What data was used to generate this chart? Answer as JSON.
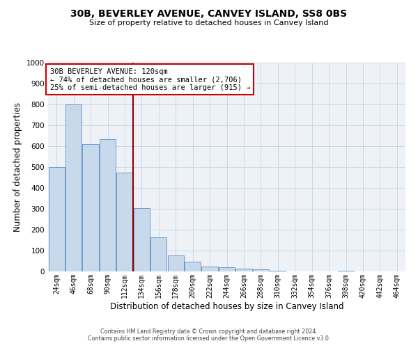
{
  "title": "30B, BEVERLEY AVENUE, CANVEY ISLAND, SS8 0BS",
  "subtitle": "Size of property relative to detached houses in Canvey Island",
  "xlabel": "Distribution of detached houses by size in Canvey Island",
  "ylabel": "Number of detached properties",
  "bar_labels": [
    "24sqm",
    "46sqm",
    "68sqm",
    "90sqm",
    "112sqm",
    "134sqm",
    "156sqm",
    "178sqm",
    "200sqm",
    "222sqm",
    "244sqm",
    "266sqm",
    "288sqm",
    "310sqm",
    "332sqm",
    "354sqm",
    "376sqm",
    "398sqm",
    "420sqm",
    "442sqm",
    "464sqm"
  ],
  "bar_values": [
    500,
    800,
    610,
    635,
    475,
    305,
    162,
    78,
    48,
    25,
    20,
    12,
    10,
    5,
    0,
    0,
    0,
    5,
    0,
    0,
    0
  ],
  "bar_color": "#c9d9ec",
  "bar_edgecolor": "#5b8fc9",
  "vline_x_index": 4.5,
  "vline_color": "#8b0000",
  "annotation_text": "30B BEVERLEY AVENUE: 120sqm\n← 74% of detached houses are smaller (2,706)\n25% of semi-detached houses are larger (915) →",
  "annotation_box_facecolor": "#ffffff",
  "annotation_box_edgecolor": "#cc0000",
  "ylim": [
    0,
    1000
  ],
  "yticks": [
    0,
    100,
    200,
    300,
    400,
    500,
    600,
    700,
    800,
    900,
    1000
  ],
  "grid_color": "#c8d8e8",
  "bg_color": "#eef2f7",
  "footer_line1": "Contains HM Land Registry data © Crown copyright and database right 2024.",
  "footer_line2": "Contains public sector information licensed under the Open Government Licence v3.0."
}
